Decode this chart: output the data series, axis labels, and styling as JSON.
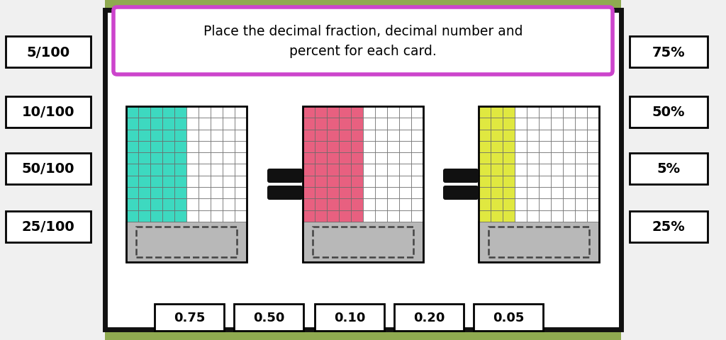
{
  "bg_color": "#8faa50",
  "left_panel_color": "#f0f0f0",
  "right_panel_color": "#f0f0f0",
  "main_box_border": "#111111",
  "title_text": "Place the decimal fraction, decimal number and\npercent for each card.",
  "title_border": "#cc44cc",
  "title_bg": "#ffffff",
  "left_labels": [
    "5/100",
    "10/100",
    "50/100",
    "25/100"
  ],
  "right_labels": [
    "75%",
    "50%",
    "5%",
    "25%"
  ],
  "bottom_labels": [
    "0.75",
    "0.50",
    "0.10",
    "0.20",
    "0.05"
  ],
  "grid_colors": [
    "#3dd9c0",
    "#e86080",
    "#e0e840"
  ],
  "grid_cols_filled": [
    5,
    5,
    3
  ],
  "grid_total_cols": 10,
  "grid_rows": 10,
  "gray_color": "#b8b8b8",
  "dashed_box_color": "#444444",
  "equal_sign_color": "#111111"
}
